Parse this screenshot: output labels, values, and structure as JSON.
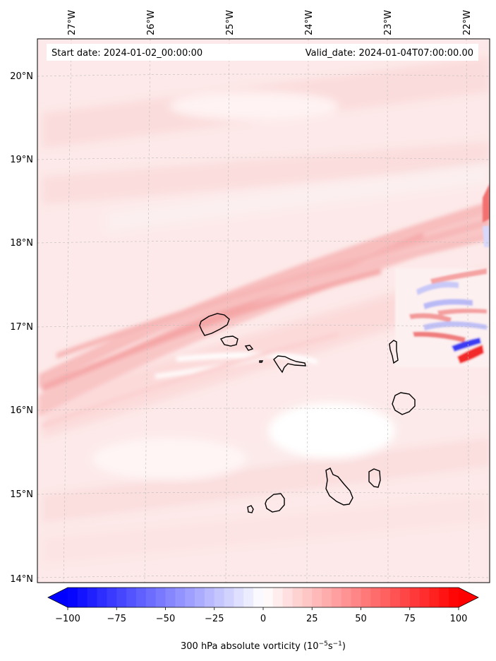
{
  "map": {
    "start_date": "Start date: 2024-01-02_00:00:00",
    "valid_date": "Valid_date: 2024-01-04T07:00:00.00",
    "lon_labels": [
      "27°W",
      "26°W",
      "25°W",
      "24°W",
      "23°W",
      "22°W"
    ],
    "lat_labels": [
      "20°N",
      "19°N",
      "18°N",
      "17°N",
      "16°N",
      "15°N",
      "14°N"
    ],
    "islands": [
      "Santo Antão",
      "São Vicente",
      "Santa Luzia",
      "São Nicolau",
      "Sal",
      "Boa Vista",
      "Maio",
      "Santiago",
      "Fogo",
      "Brava",
      "Branco"
    ]
  },
  "colorbar": {
    "label_text": "300 hPa absolute vorticity (10",
    "label_exp1": "−5",
    "label_mid": "s",
    "label_exp2": "−1",
    "label_close": ")",
    "tick_labels": [
      "−100",
      "−75",
      "−50",
      "−25",
      "0",
      "25",
      "50",
      "75",
      "100"
    ],
    "min": -100,
    "max": 100,
    "step": 5,
    "colors": {
      "negative": "#0000ff",
      "zero": "#ffffff",
      "positive": "#ff0000"
    }
  }
}
